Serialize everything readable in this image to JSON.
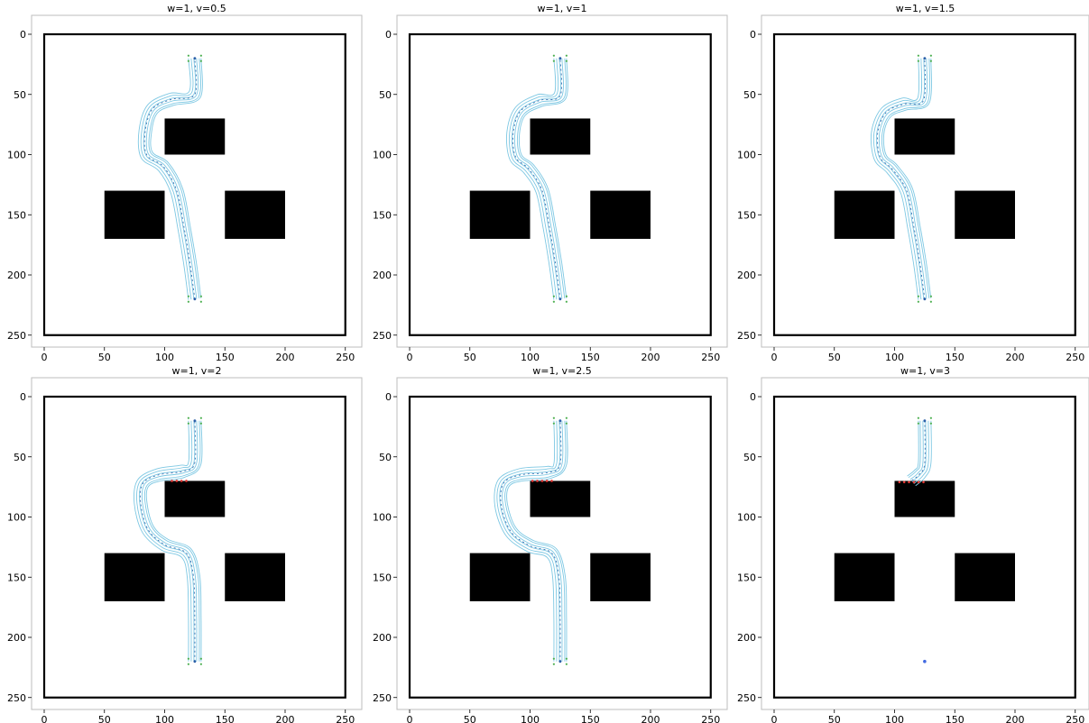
{
  "figure": {
    "colors": {
      "background": "#ffffff",
      "map_boundary": "#000000",
      "obstacle": "#000000",
      "trajectory": "#7ec8e3",
      "trajectory_center": "#2b5fa8",
      "start_goal_marker": "#4caf50",
      "collision_marker": "#e53935",
      "goal_marker": "#4169e1"
    }
  },
  "chart_data": [
    {
      "type": "scatter",
      "title": "w=1, v=0.5",
      "xlim": [
        0,
        250
      ],
      "ylim": [
        250,
        0
      ],
      "xticks": [
        "0",
        "50",
        "100",
        "150",
        "200",
        "250"
      ],
      "yticks": [
        "0",
        "50",
        "100",
        "150",
        "200",
        "250"
      ],
      "boundary": {
        "x0": 0,
        "y0": 0,
        "x1": 250,
        "y1": 250
      },
      "obstacles": [
        {
          "x0": 100,
          "y0": 70,
          "x1": 150,
          "y1": 100
        },
        {
          "x0": 50,
          "y0": 130,
          "x1": 100,
          "y1": 170
        },
        {
          "x0": 150,
          "y0": 130,
          "x1": 200,
          "y1": 170
        }
      ],
      "start": [
        125,
        220
      ],
      "goal": [
        125,
        20
      ],
      "path": [
        [
          125,
          220
        ],
        [
          121,
          190
        ],
        [
          116,
          160
        ],
        [
          110,
          130
        ],
        [
          99,
          110
        ],
        [
          85,
          100
        ],
        [
          84,
          80
        ],
        [
          90,
          62
        ],
        [
          106,
          54
        ],
        [
          125,
          50
        ],
        [
          125,
          20
        ]
      ],
      "path_offsets": [
        -7,
        -4,
        -1,
        2,
        5,
        7
      ],
      "collisions": []
    },
    {
      "type": "scatter",
      "title": "w=1, v=1",
      "xlim": [
        0,
        250
      ],
      "ylim": [
        250,
        0
      ],
      "xticks": [
        "0",
        "50",
        "100",
        "150",
        "200",
        "250"
      ],
      "yticks": [
        "0",
        "50",
        "100",
        "150",
        "200",
        "250"
      ],
      "boundary": {
        "x0": 0,
        "y0": 0,
        "x1": 250,
        "y1": 250
      },
      "obstacles": [
        {
          "x0": 100,
          "y0": 70,
          "x1": 150,
          "y1": 100
        },
        {
          "x0": 50,
          "y0": 130,
          "x1": 100,
          "y1": 170
        },
        {
          "x0": 150,
          "y0": 130,
          "x1": 200,
          "y1": 170
        }
      ],
      "start": [
        125,
        220
      ],
      "goal": [
        125,
        20
      ],
      "path": [
        [
          125,
          220
        ],
        [
          121,
          190
        ],
        [
          116,
          160
        ],
        [
          110,
          130
        ],
        [
          99,
          112
        ],
        [
          88,
          102
        ],
        [
          86,
          82
        ],
        [
          92,
          64
        ],
        [
          108,
          55
        ],
        [
          125,
          51
        ],
        [
          125,
          20
        ]
      ],
      "path_offsets": [
        -7,
        -4,
        -1,
        2,
        5,
        7
      ],
      "collisions": []
    },
    {
      "type": "scatter",
      "title": "w=1, v=1.5",
      "xlim": [
        0,
        250
      ],
      "ylim": [
        250,
        0
      ],
      "xticks": [
        "0",
        "50",
        "100",
        "150",
        "200",
        "250"
      ],
      "yticks": [
        "0",
        "50",
        "100",
        "150",
        "200",
        "250"
      ],
      "boundary": {
        "x0": 0,
        "y0": 0,
        "x1": 250,
        "y1": 250
      },
      "obstacles": [
        {
          "x0": 100,
          "y0": 70,
          "x1": 150,
          "y1": 100
        },
        {
          "x0": 50,
          "y0": 130,
          "x1": 100,
          "y1": 170
        },
        {
          "x0": 150,
          "y0": 130,
          "x1": 200,
          "y1": 170
        }
      ],
      "start": [
        125,
        220
      ],
      "goal": [
        125,
        20
      ],
      "path": [
        [
          125,
          220
        ],
        [
          121,
          190
        ],
        [
          116,
          160
        ],
        [
          110,
          130
        ],
        [
          98,
          112
        ],
        [
          88,
          102
        ],
        [
          86,
          82
        ],
        [
          93,
          65
        ],
        [
          108,
          58
        ],
        [
          124,
          55
        ],
        [
          125,
          20
        ]
      ],
      "path_offsets": [
        -7,
        -4,
        -1,
        2,
        5,
        7
      ],
      "collisions": []
    },
    {
      "type": "scatter",
      "title": "w=1, v=2",
      "xlim": [
        0,
        250
      ],
      "ylim": [
        250,
        0
      ],
      "xticks": [
        "0",
        "50",
        "100",
        "150",
        "200",
        "250"
      ],
      "yticks": [
        "0",
        "50",
        "100",
        "150",
        "200",
        "250"
      ],
      "boundary": {
        "x0": 0,
        "y0": 0,
        "x1": 250,
        "y1": 250
      },
      "obstacles": [
        {
          "x0": 100,
          "y0": 70,
          "x1": 150,
          "y1": 100
        },
        {
          "x0": 50,
          "y0": 130,
          "x1": 100,
          "y1": 170
        },
        {
          "x0": 150,
          "y0": 130,
          "x1": 200,
          "y1": 170
        }
      ],
      "start": [
        125,
        220
      ],
      "goal": [
        125,
        20
      ],
      "path": [
        [
          125,
          220
        ],
        [
          125,
          185
        ],
        [
          124,
          150
        ],
        [
          118,
          130
        ],
        [
          100,
          123
        ],
        [
          86,
          110
        ],
        [
          80,
          88
        ],
        [
          82,
          72
        ],
        [
          95,
          65
        ],
        [
          115,
          62
        ],
        [
          125,
          55
        ],
        [
          125,
          20
        ]
      ],
      "path_offsets": [
        -7,
        -4,
        -1,
        2,
        5,
        7
      ],
      "collisions": [
        [
          106,
          70
        ],
        [
          110,
          70
        ],
        [
          114,
          70
        ],
        [
          118,
          70
        ]
      ]
    },
    {
      "type": "scatter",
      "title": "w=1, v=2.5",
      "xlim": [
        0,
        250
      ],
      "ylim": [
        250,
        0
      ],
      "xticks": [
        "0",
        "50",
        "100",
        "150",
        "200",
        "250"
      ],
      "yticks": [
        "0",
        "50",
        "100",
        "150",
        "200",
        "250"
      ],
      "boundary": {
        "x0": 0,
        "y0": 0,
        "x1": 250,
        "y1": 250
      },
      "obstacles": [
        {
          "x0": 100,
          "y0": 70,
          "x1": 150,
          "y1": 100
        },
        {
          "x0": 50,
          "y0": 130,
          "x1": 100,
          "y1": 170
        },
        {
          "x0": 150,
          "y0": 130,
          "x1": 200,
          "y1": 170
        }
      ],
      "start": [
        125,
        220
      ],
      "goal": [
        125,
        20
      ],
      "path": [
        [
          125,
          220
        ],
        [
          125,
          185
        ],
        [
          124,
          150
        ],
        [
          118,
          130
        ],
        [
          100,
          124
        ],
        [
          84,
          112
        ],
        [
          76,
          90
        ],
        [
          78,
          72
        ],
        [
          92,
          65
        ],
        [
          115,
          63
        ],
        [
          125,
          56
        ],
        [
          125,
          20
        ]
      ],
      "path_offsets": [
        -7,
        -4,
        -1,
        2,
        5,
        7
      ],
      "collisions": [
        [
          102,
          70
        ],
        [
          106,
          70
        ],
        [
          110,
          70
        ],
        [
          114,
          70
        ],
        [
          118,
          70
        ]
      ]
    },
    {
      "type": "scatter",
      "title": "w=1, v=3",
      "xlim": [
        0,
        250
      ],
      "ylim": [
        250,
        0
      ],
      "xticks": [
        "0",
        "50",
        "100",
        "150",
        "200",
        "250"
      ],
      "yticks": [
        "0",
        "50",
        "100",
        "150",
        "200",
        "250"
      ],
      "boundary": {
        "x0": 0,
        "y0": 0,
        "x1": 250,
        "y1": 250
      },
      "obstacles": [
        {
          "x0": 100,
          "y0": 70,
          "x1": 150,
          "y1": 100
        },
        {
          "x0": 50,
          "y0": 130,
          "x1": 100,
          "y1": 170
        },
        {
          "x0": 150,
          "y0": 130,
          "x1": 200,
          "y1": 170
        }
      ],
      "start": [
        125,
        220
      ],
      "goal": [
        125,
        20
      ],
      "path": [
        [
          125,
          20
        ],
        [
          125,
          55
        ],
        [
          121,
          64
        ],
        [
          114,
          70
        ]
      ],
      "path_offsets": [
        -7,
        -4,
        -1,
        2,
        5,
        7
      ],
      "collisions": [
        [
          104,
          71
        ],
        [
          108,
          71
        ],
        [
          112,
          71
        ],
        [
          116,
          71
        ],
        [
          120,
          71
        ],
        [
          124,
          71
        ]
      ]
    }
  ]
}
